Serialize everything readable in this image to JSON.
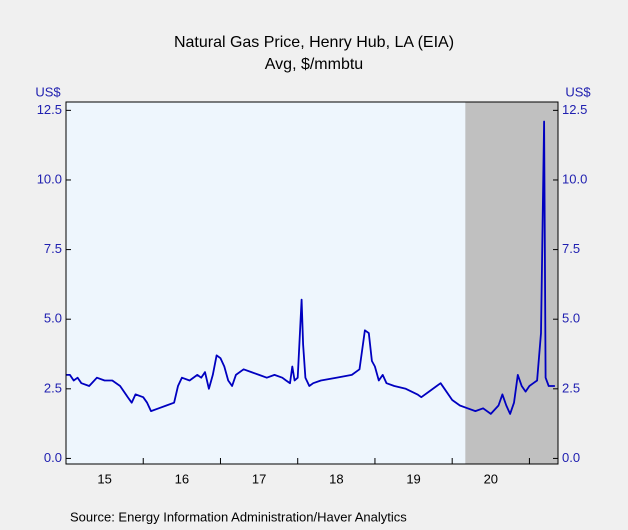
{
  "chart_data": {
    "type": "line",
    "title": "Natural Gas Price, Henry Hub, LA (EIA)",
    "subtitle": "Avg, $/mmbtu",
    "y_unit_left": "US$",
    "y_unit_right": "US$",
    "source": "Source:  Energy Information Administration/Haver Analytics",
    "xlim": [
      2015,
      2021.37
    ],
    "ylim": [
      -0.2,
      12.8
    ],
    "xticks": [
      2015,
      2016,
      2017,
      2018,
      2019,
      2020,
      2021
    ],
    "xtick_labels": [
      {
        "value": 2015.5,
        "label": "15"
      },
      {
        "value": 2016.5,
        "label": "16"
      },
      {
        "value": 2017.5,
        "label": "17"
      },
      {
        "value": 2018.5,
        "label": "18"
      },
      {
        "value": 2019.5,
        "label": "19"
      },
      {
        "value": 2020.5,
        "label": "20"
      }
    ],
    "yticks": [
      {
        "value": 0,
        "label": "0.0"
      },
      {
        "value": 2.5,
        "label": "2.5"
      },
      {
        "value": 5,
        "label": "5.0"
      },
      {
        "value": 7.5,
        "label": "7.5"
      },
      {
        "value": 10,
        "label": "10.0"
      },
      {
        "value": 12.5,
        "label": "12.5"
      }
    ],
    "shaded": [
      2020.17,
      2021.37
    ],
    "shade_color": "#c0c0c0",
    "background": "#eef6fd",
    "series": [
      {
        "name": "Natural Gas Price",
        "color": "#0000c0",
        "x": [
          2015.0,
          2015.05,
          2015.1,
          2015.15,
          2015.2,
          2015.3,
          2015.4,
          2015.5,
          2015.6,
          2015.7,
          2015.8,
          2015.85,
          2015.9,
          2016.0,
          2016.05,
          2016.1,
          2016.2,
          2016.3,
          2016.4,
          2016.45,
          2016.5,
          2016.6,
          2016.7,
          2016.75,
          2016.8,
          2016.85,
          2016.9,
          2016.95,
          2017.0,
          2017.05,
          2017.1,
          2017.15,
          2017.2,
          2017.3,
          2017.4,
          2017.5,
          2017.6,
          2017.7,
          2017.8,
          2017.85,
          2017.9,
          2017.93,
          2017.96,
          2018.0,
          2018.05,
          2018.07,
          2018.1,
          2018.15,
          2018.2,
          2018.3,
          2018.5,
          2018.7,
          2018.8,
          2018.87,
          2018.92,
          2018.96,
          2019.0,
          2019.05,
          2019.1,
          2019.15,
          2019.25,
          2019.4,
          2019.55,
          2019.6,
          2019.7,
          2019.8,
          2019.85,
          2019.9,
          2020.0,
          2020.1,
          2020.2,
          2020.3,
          2020.4,
          2020.5,
          2020.6,
          2020.65,
          2020.7,
          2020.75,
          2020.8,
          2020.85,
          2020.9,
          2020.95,
          2021.0,
          2021.05,
          2021.1,
          2021.15,
          2021.19,
          2021.21,
          2021.25,
          2021.33
        ],
        "values": [
          3.0,
          3.0,
          2.8,
          2.9,
          2.7,
          2.6,
          2.9,
          2.8,
          2.8,
          2.6,
          2.2,
          2.0,
          2.3,
          2.2,
          2.0,
          1.7,
          1.8,
          1.9,
          2.0,
          2.6,
          2.9,
          2.8,
          3.0,
          2.9,
          3.1,
          2.5,
          3.0,
          3.7,
          3.6,
          3.3,
          2.8,
          2.6,
          3.0,
          3.2,
          3.1,
          3.0,
          2.9,
          3.0,
          2.9,
          2.8,
          2.7,
          3.3,
          2.8,
          2.9,
          5.7,
          4.1,
          2.9,
          2.6,
          2.7,
          2.8,
          2.9,
          3.0,
          3.2,
          4.6,
          4.5,
          3.5,
          3.3,
          2.8,
          3.0,
          2.7,
          2.6,
          2.5,
          2.3,
          2.2,
          2.4,
          2.6,
          2.7,
          2.5,
          2.1,
          1.9,
          1.8,
          1.7,
          1.8,
          1.6,
          1.9,
          2.3,
          1.9,
          1.6,
          2.0,
          3.0,
          2.6,
          2.4,
          2.6,
          2.7,
          2.8,
          4.5,
          12.1,
          2.9,
          2.6,
          2.6
        ]
      }
    ]
  }
}
